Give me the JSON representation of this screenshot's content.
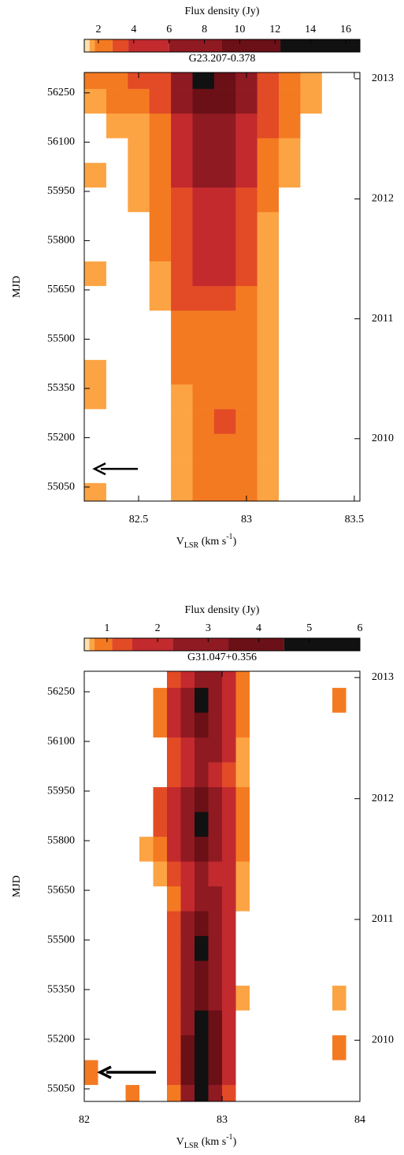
{
  "chart_data": [
    {
      "type": "heatmap",
      "title": "G23.207-0.378",
      "ylabel": "MJD",
      "xlabel_parts": [
        "V",
        "LSR",
        " (km s",
        "-1",
        ")"
      ],
      "xlim": [
        82.248,
        83.526
      ],
      "xticks": [
        82.5,
        83,
        83.5
      ],
      "ylim": [
        55007,
        56312
      ],
      "yticks": [
        55050,
        55200,
        55350,
        55500,
        55650,
        55800,
        55950,
        56100,
        56250
      ],
      "y2lim": [
        55007,
        56312
      ],
      "y2ticks": [
        {
          "value": 55197,
          "label": "2010"
        },
        {
          "value": 55562,
          "label": "2011"
        },
        {
          "value": 55927,
          "label": "2012"
        },
        {
          "value": 56293,
          "label": "2013"
        }
      ],
      "colorbar": {
        "label": "Flux density (Jy)",
        "lim": [
          1.2,
          16.8
        ],
        "ticks": [
          2,
          4,
          6,
          8,
          10,
          12,
          14,
          16
        ],
        "levels": [
          1.2,
          1.5,
          1.8,
          2.8,
          3.7,
          6,
          9,
          12.3,
          16.8
        ],
        "colors": [
          "#fde0b0",
          "#fca444",
          "#f47a22",
          "#e24b26",
          "#c22a2e",
          "#8f1a22",
          "#6a1016",
          "#111111"
        ]
      },
      "annotation_arrow_mjd": 55105,
      "x": [
        82.3,
        82.4,
        82.5,
        82.6,
        82.7,
        82.8,
        82.9,
        83.0,
        83.1,
        83.2,
        83.3,
        83.4,
        83.5
      ],
      "y": [
        55025,
        55100,
        55175,
        55250,
        55325,
        55400,
        55475,
        55550,
        55625,
        55700,
        55775,
        55850,
        55925,
        56000,
        56075,
        56150,
        56225,
        56300
      ],
      "values": [
        [
          1.6,
          0,
          0,
          0,
          1.6,
          2.3,
          2.3,
          2.3,
          1.6,
          0,
          0,
          0,
          0
        ],
        [
          0,
          0,
          0,
          0,
          1.6,
          2.3,
          2.3,
          2.3,
          1.6,
          0,
          0,
          0,
          0
        ],
        [
          0,
          0,
          0,
          0,
          1.6,
          2.3,
          2.3,
          2.3,
          1.6,
          0,
          0,
          0,
          0
        ],
        [
          0,
          0,
          0,
          0,
          1.6,
          2.3,
          3.2,
          2.3,
          1.6,
          0,
          0,
          0,
          0
        ],
        [
          1.6,
          0,
          0,
          0,
          1.6,
          2.3,
          2.3,
          2.3,
          1.6,
          0,
          0,
          0,
          0
        ],
        [
          1.6,
          0,
          0,
          0,
          2.3,
          2.3,
          2.3,
          2.3,
          1.6,
          0,
          0,
          0,
          0
        ],
        [
          0,
          0,
          0,
          0,
          2.3,
          2.3,
          2.3,
          2.3,
          1.6,
          0,
          0,
          0,
          0
        ],
        [
          0,
          0,
          0,
          0,
          2.3,
          2.3,
          2.3,
          2.3,
          1.6,
          0,
          0,
          0,
          0
        ],
        [
          0,
          0,
          0,
          1.6,
          3.2,
          3.2,
          3.2,
          2.3,
          1.6,
          0,
          0,
          0,
          0
        ],
        [
          1.6,
          0,
          0,
          1.6,
          3.2,
          5,
          5,
          3.2,
          1.6,
          0,
          0,
          0,
          0
        ],
        [
          0,
          0,
          0,
          2.3,
          3.2,
          5,
          5,
          3.2,
          1.6,
          0,
          0,
          0,
          0
        ],
        [
          0,
          0,
          0,
          2.3,
          3.2,
          5,
          5,
          3.2,
          1.6,
          0,
          0,
          0,
          0
        ],
        [
          0,
          0,
          1.6,
          2.3,
          3.2,
          5,
          5,
          3.2,
          2.3,
          0,
          0,
          0,
          0
        ],
        [
          1.6,
          0,
          1.6,
          2.3,
          5,
          7,
          7,
          5,
          2.3,
          1.6,
          0,
          0,
          0
        ],
        [
          0,
          0,
          1.6,
          2.3,
          5,
          7,
          7,
          5,
          2.3,
          1.6,
          0,
          0,
          0
        ],
        [
          0,
          1.6,
          1.6,
          2.3,
          5,
          7,
          7,
          5,
          3.2,
          2.3,
          0,
          0,
          0
        ],
        [
          1.6,
          2.3,
          2.3,
          3.2,
          7,
          10,
          10,
          7,
          3.2,
          2.3,
          1.6,
          0,
          0
        ],
        [
          2.3,
          2.3,
          3.2,
          3.2,
          7,
          14,
          10,
          7,
          3.2,
          2.3,
          1.6,
          0,
          0
        ]
      ]
    },
    {
      "type": "heatmap",
      "title": "G31.047+0.356",
      "ylabel": "MJD",
      "xlabel_parts": [
        "V",
        "LSR",
        " (km s",
        "-1",
        ")"
      ],
      "xlim": [
        82,
        84
      ],
      "xticks": [
        82,
        83,
        84
      ],
      "ylim": [
        55012,
        56312
      ],
      "yticks": [
        55050,
        55200,
        55350,
        55500,
        55650,
        55800,
        55950,
        56100,
        56250
      ],
      "y2lim": [
        55012,
        56312
      ],
      "y2ticks": [
        {
          "value": 55197,
          "label": "2010"
        },
        {
          "value": 55562,
          "label": "2011"
        },
        {
          "value": 55927,
          "label": "2012"
        },
        {
          "value": 56293,
          "label": "2013"
        }
      ],
      "colorbar": {
        "label": "Flux density (Jy)",
        "lim": [
          0.55,
          6
        ],
        "ticks": [
          1,
          2,
          3,
          4,
          5,
          6
        ],
        "levels": [
          0.55,
          0.65,
          0.75,
          1.1,
          1.5,
          2.3,
          3.4,
          4.5,
          6
        ],
        "colors": [
          "#fde0b0",
          "#fca444",
          "#f47a22",
          "#e24b26",
          "#c22a2e",
          "#8f1a22",
          "#6a1016",
          "#111111"
        ]
      },
      "annotation_arrow_mjd": 55100,
      "x": [
        82.05,
        82.15,
        82.25,
        82.35,
        82.45,
        82.55,
        82.65,
        82.75,
        82.85,
        82.95,
        83.05,
        83.15,
        83.25,
        83.35,
        83.45,
        83.55,
        83.65,
        83.75,
        83.85,
        83.95
      ],
      "y": [
        55025,
        55100,
        55175,
        55250,
        55325,
        55400,
        55475,
        55550,
        55625,
        55700,
        55775,
        55850,
        55925,
        56000,
        56075,
        56150,
        56225,
        56300
      ],
      "values": [
        [
          0,
          0,
          0,
          0.9,
          0,
          0,
          0.9,
          2.8,
          5,
          2.8,
          1.3,
          0,
          0,
          0,
          0,
          0,
          0,
          0,
          0,
          0
        ],
        [
          0.9,
          0,
          0,
          0,
          0,
          0,
          1.3,
          4,
          5,
          4,
          1.9,
          0,
          0,
          0,
          0,
          0,
          0,
          0,
          0,
          0
        ],
        [
          0,
          0,
          0,
          0,
          0,
          0,
          1.3,
          4,
          5,
          4,
          1.9,
          0,
          0,
          0,
          0,
          0,
          0,
          0,
          0.9,
          0
        ],
        [
          0,
          0,
          0,
          0,
          0,
          0,
          1.3,
          2.8,
          5,
          4,
          1.9,
          0,
          0,
          0,
          0,
          0,
          0,
          0,
          0,
          0
        ],
        [
          0,
          0,
          0,
          0,
          0,
          0,
          1.3,
          2.8,
          4,
          2.8,
          1.9,
          0.7,
          0,
          0,
          0,
          0,
          0,
          0,
          0.7,
          0
        ],
        [
          0,
          0,
          0,
          0,
          0,
          0,
          1.3,
          2.8,
          4,
          2.8,
          1.9,
          0,
          0,
          0,
          0,
          0,
          0,
          0,
          0,
          0
        ],
        [
          0,
          0,
          0,
          0,
          0,
          0,
          1.3,
          2.8,
          5,
          2.8,
          1.9,
          0,
          0,
          0,
          0,
          0,
          0,
          0,
          0,
          0
        ],
        [
          0,
          0,
          0,
          0,
          0,
          0,
          1.3,
          2.8,
          4,
          2.8,
          1.9,
          0,
          0,
          0,
          0,
          0,
          0,
          0,
          0,
          0
        ],
        [
          0,
          0,
          0,
          0,
          0,
          0,
          0.9,
          1.9,
          2.8,
          2.8,
          1.9,
          0.7,
          0,
          0,
          0,
          0,
          0,
          0,
          0,
          0
        ],
        [
          0,
          0,
          0,
          0,
          0,
          0.7,
          1.3,
          1.9,
          2.8,
          1.9,
          1.9,
          0.7,
          0,
          0,
          0,
          0,
          0,
          0,
          0,
          0
        ],
        [
          0,
          0,
          0,
          0,
          0.7,
          0.9,
          1.9,
          2.8,
          4,
          2.8,
          1.9,
          0.9,
          0,
          0,
          0,
          0,
          0,
          0,
          0,
          0
        ],
        [
          0,
          0,
          0,
          0,
          0,
          1.3,
          1.9,
          2.8,
          5,
          2.8,
          1.9,
          0.9,
          0,
          0,
          0,
          0,
          0,
          0,
          0,
          0
        ],
        [
          0,
          0,
          0,
          0,
          0,
          1.3,
          1.9,
          2.8,
          4,
          2.8,
          1.9,
          0.9,
          0,
          0,
          0,
          0,
          0,
          0,
          0,
          0
        ],
        [
          0,
          0,
          0,
          0,
          0,
          0,
          1.3,
          1.9,
          2.8,
          1.9,
          1.3,
          0.7,
          0,
          0,
          0,
          0,
          0,
          0,
          0,
          0
        ],
        [
          0,
          0,
          0,
          0,
          0,
          0,
          1.3,
          1.9,
          2.8,
          2.8,
          1.9,
          0.7,
          0,
          0,
          0,
          0,
          0,
          0,
          0,
          0
        ],
        [
          0,
          0,
          0,
          0,
          0,
          0.9,
          1.9,
          2.8,
          4,
          2.8,
          1.9,
          0.9,
          0,
          0,
          0,
          0,
          0,
          0,
          0,
          0
        ],
        [
          0,
          0,
          0,
          0,
          0,
          0.9,
          1.9,
          2.8,
          5,
          2.8,
          1.9,
          0.9,
          0,
          0,
          0,
          0,
          0,
          0,
          0.9,
          0
        ],
        [
          0,
          0,
          0,
          0,
          0,
          0,
          1.3,
          1.9,
          2.8,
          2.8,
          1.9,
          0.9,
          0,
          0,
          0,
          0,
          0,
          0,
          0,
          0
        ]
      ]
    }
  ]
}
